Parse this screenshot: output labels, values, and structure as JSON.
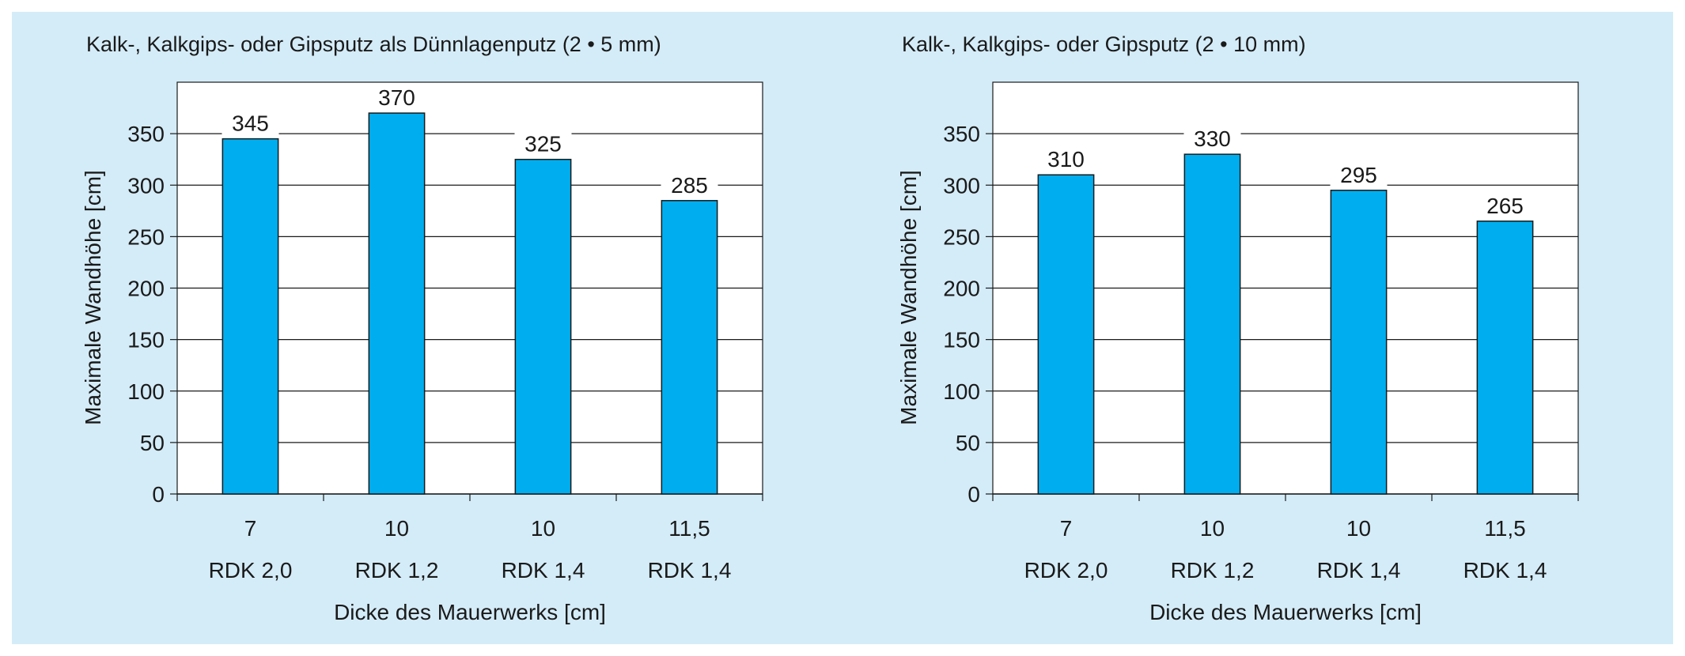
{
  "colors": {
    "panel_background": "#d4ecf8",
    "plot_background": "#ffffff",
    "bar_fill": "#00aeef",
    "bar_stroke": "#1a1a1a",
    "grid": "#1a1a1a"
  },
  "chart_data": [
    {
      "type": "bar",
      "title": "Kalk-, Kalkgips- oder Gipsputz als Dünnlagenputz (2 • 5 mm)",
      "xlabel": "Dicke des Mauerwerks [cm]",
      "ylabel": "Maximale Wandhöhe [cm]",
      "categories": [
        "7",
        "10",
        "10",
        "11,5"
      ],
      "category_sublabels": [
        "RDK 2,0",
        "RDK 1,2",
        "RDK 1,4",
        "RDK 1,4"
      ],
      "values": [
        345,
        370,
        325,
        285
      ],
      "data_labels": [
        "345",
        "370",
        "325",
        "285"
      ],
      "ylim": [
        0,
        400
      ],
      "yticks": [
        0,
        50,
        100,
        150,
        200,
        250,
        300,
        350
      ],
      "ytick_labels": [
        "0",
        "50",
        "100",
        "150",
        "200",
        "250",
        "300",
        "350"
      ],
      "grid": true,
      "legend": "none"
    },
    {
      "type": "bar",
      "title": "Kalk-, Kalkgips- oder Gipsputz (2 • 10 mm)",
      "xlabel": "Dicke des Mauerwerks [cm]",
      "ylabel": "Maximale Wandhöhe [cm]",
      "categories": [
        "7",
        "10",
        "10",
        "11,5"
      ],
      "category_sublabels": [
        "RDK 2,0",
        "RDK 1,2",
        "RDK 1,4",
        "RDK 1,4"
      ],
      "values": [
        310,
        330,
        295,
        265
      ],
      "data_labels": [
        "310",
        "330",
        "295",
        "265"
      ],
      "ylim": [
        0,
        400
      ],
      "yticks": [
        0,
        50,
        100,
        150,
        200,
        250,
        300,
        350
      ],
      "ytick_labels": [
        "0",
        "50",
        "100",
        "150",
        "200",
        "250",
        "300",
        "350"
      ],
      "grid": true,
      "legend": "none"
    }
  ]
}
